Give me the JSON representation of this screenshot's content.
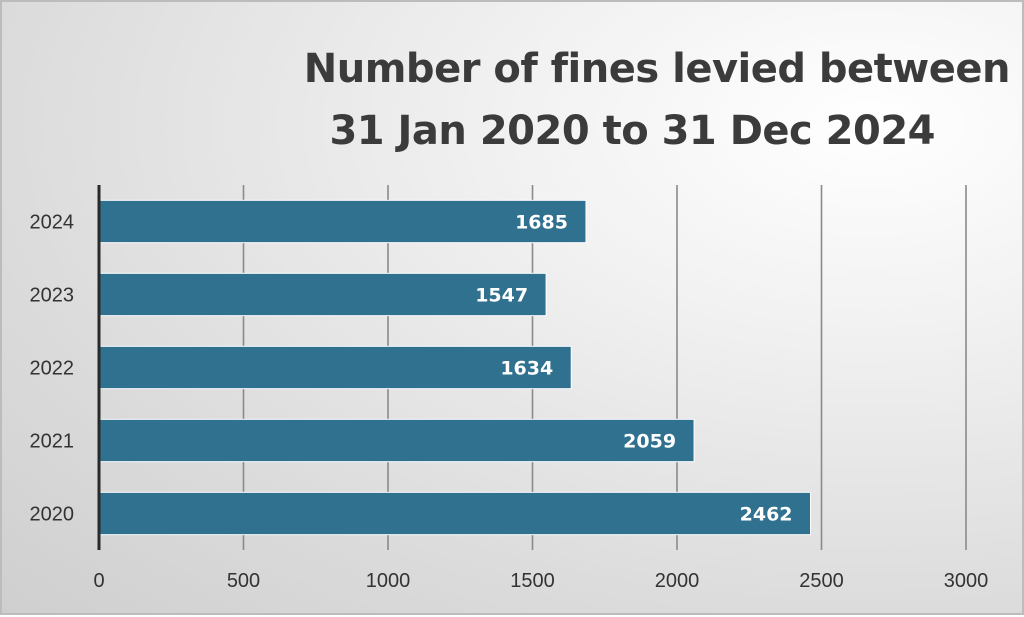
{
  "chart_data": {
    "type": "bar",
    "orientation": "horizontal",
    "title_lines": [
      "Number of fines levied between",
      "31 Jan 2020 to 31 Dec 2024"
    ],
    "categories": [
      "2024",
      "2023",
      "2022",
      "2021",
      "2020"
    ],
    "values": [
      1685,
      1547,
      1634,
      2059,
      2462
    ],
    "data_labels": [
      "1685",
      "1547",
      "1634",
      "2059",
      "2462"
    ],
    "xlim": [
      0,
      3000
    ],
    "x_ticks": [
      0,
      500,
      1000,
      1500,
      2000,
      2500,
      3000
    ],
    "x_tick_labels": [
      "0",
      "500",
      "1000",
      "1500",
      "2000",
      "2500",
      "3000"
    ],
    "xlabel": "",
    "ylabel": "",
    "grid": "vertical",
    "legend": "none",
    "bar_color": "#30718f"
  }
}
